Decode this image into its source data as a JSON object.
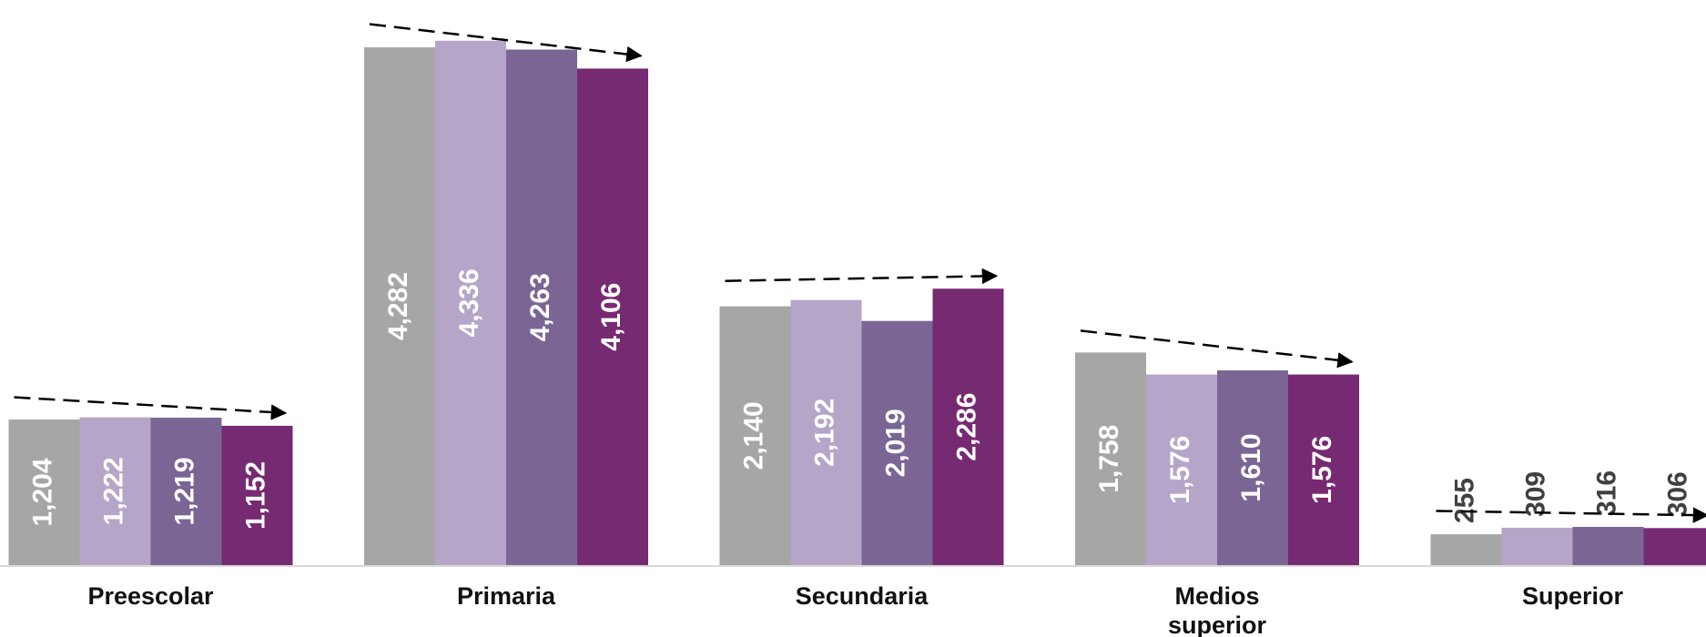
{
  "chart_data": {
    "type": "bar",
    "categories": [
      "Preescolar",
      "Primaria",
      "Secundaria",
      "Medios superior",
      "Superior"
    ],
    "series": [
      {
        "color": "#a6a6a6",
        "values": [
          1204,
          4282,
          2140,
          1758,
          255
        ],
        "value_labels": [
          "1,204",
          "4,282",
          "2,140",
          "1,758",
          "255"
        ]
      },
      {
        "color": "#b5a6c9",
        "values": [
          1222,
          4336,
          2192,
          1576,
          309
        ],
        "value_labels": [
          "1,222",
          "4,336",
          "2,192",
          "1,576",
          "309"
        ]
      },
      {
        "color": "#7a6594",
        "values": [
          1219,
          4263,
          2019,
          1610,
          316
        ],
        "value_labels": [
          "1,219",
          "4,263",
          "2,019",
          "1,610",
          "316"
        ]
      },
      {
        "color": "#762a72",
        "values": [
          1152,
          4106,
          2286,
          1576,
          306
        ],
        "value_labels": [
          "1,152",
          "4,106",
          "2,286",
          "1,576",
          "306"
        ]
      }
    ],
    "ylim": [
      0,
      4500
    ]
  }
}
